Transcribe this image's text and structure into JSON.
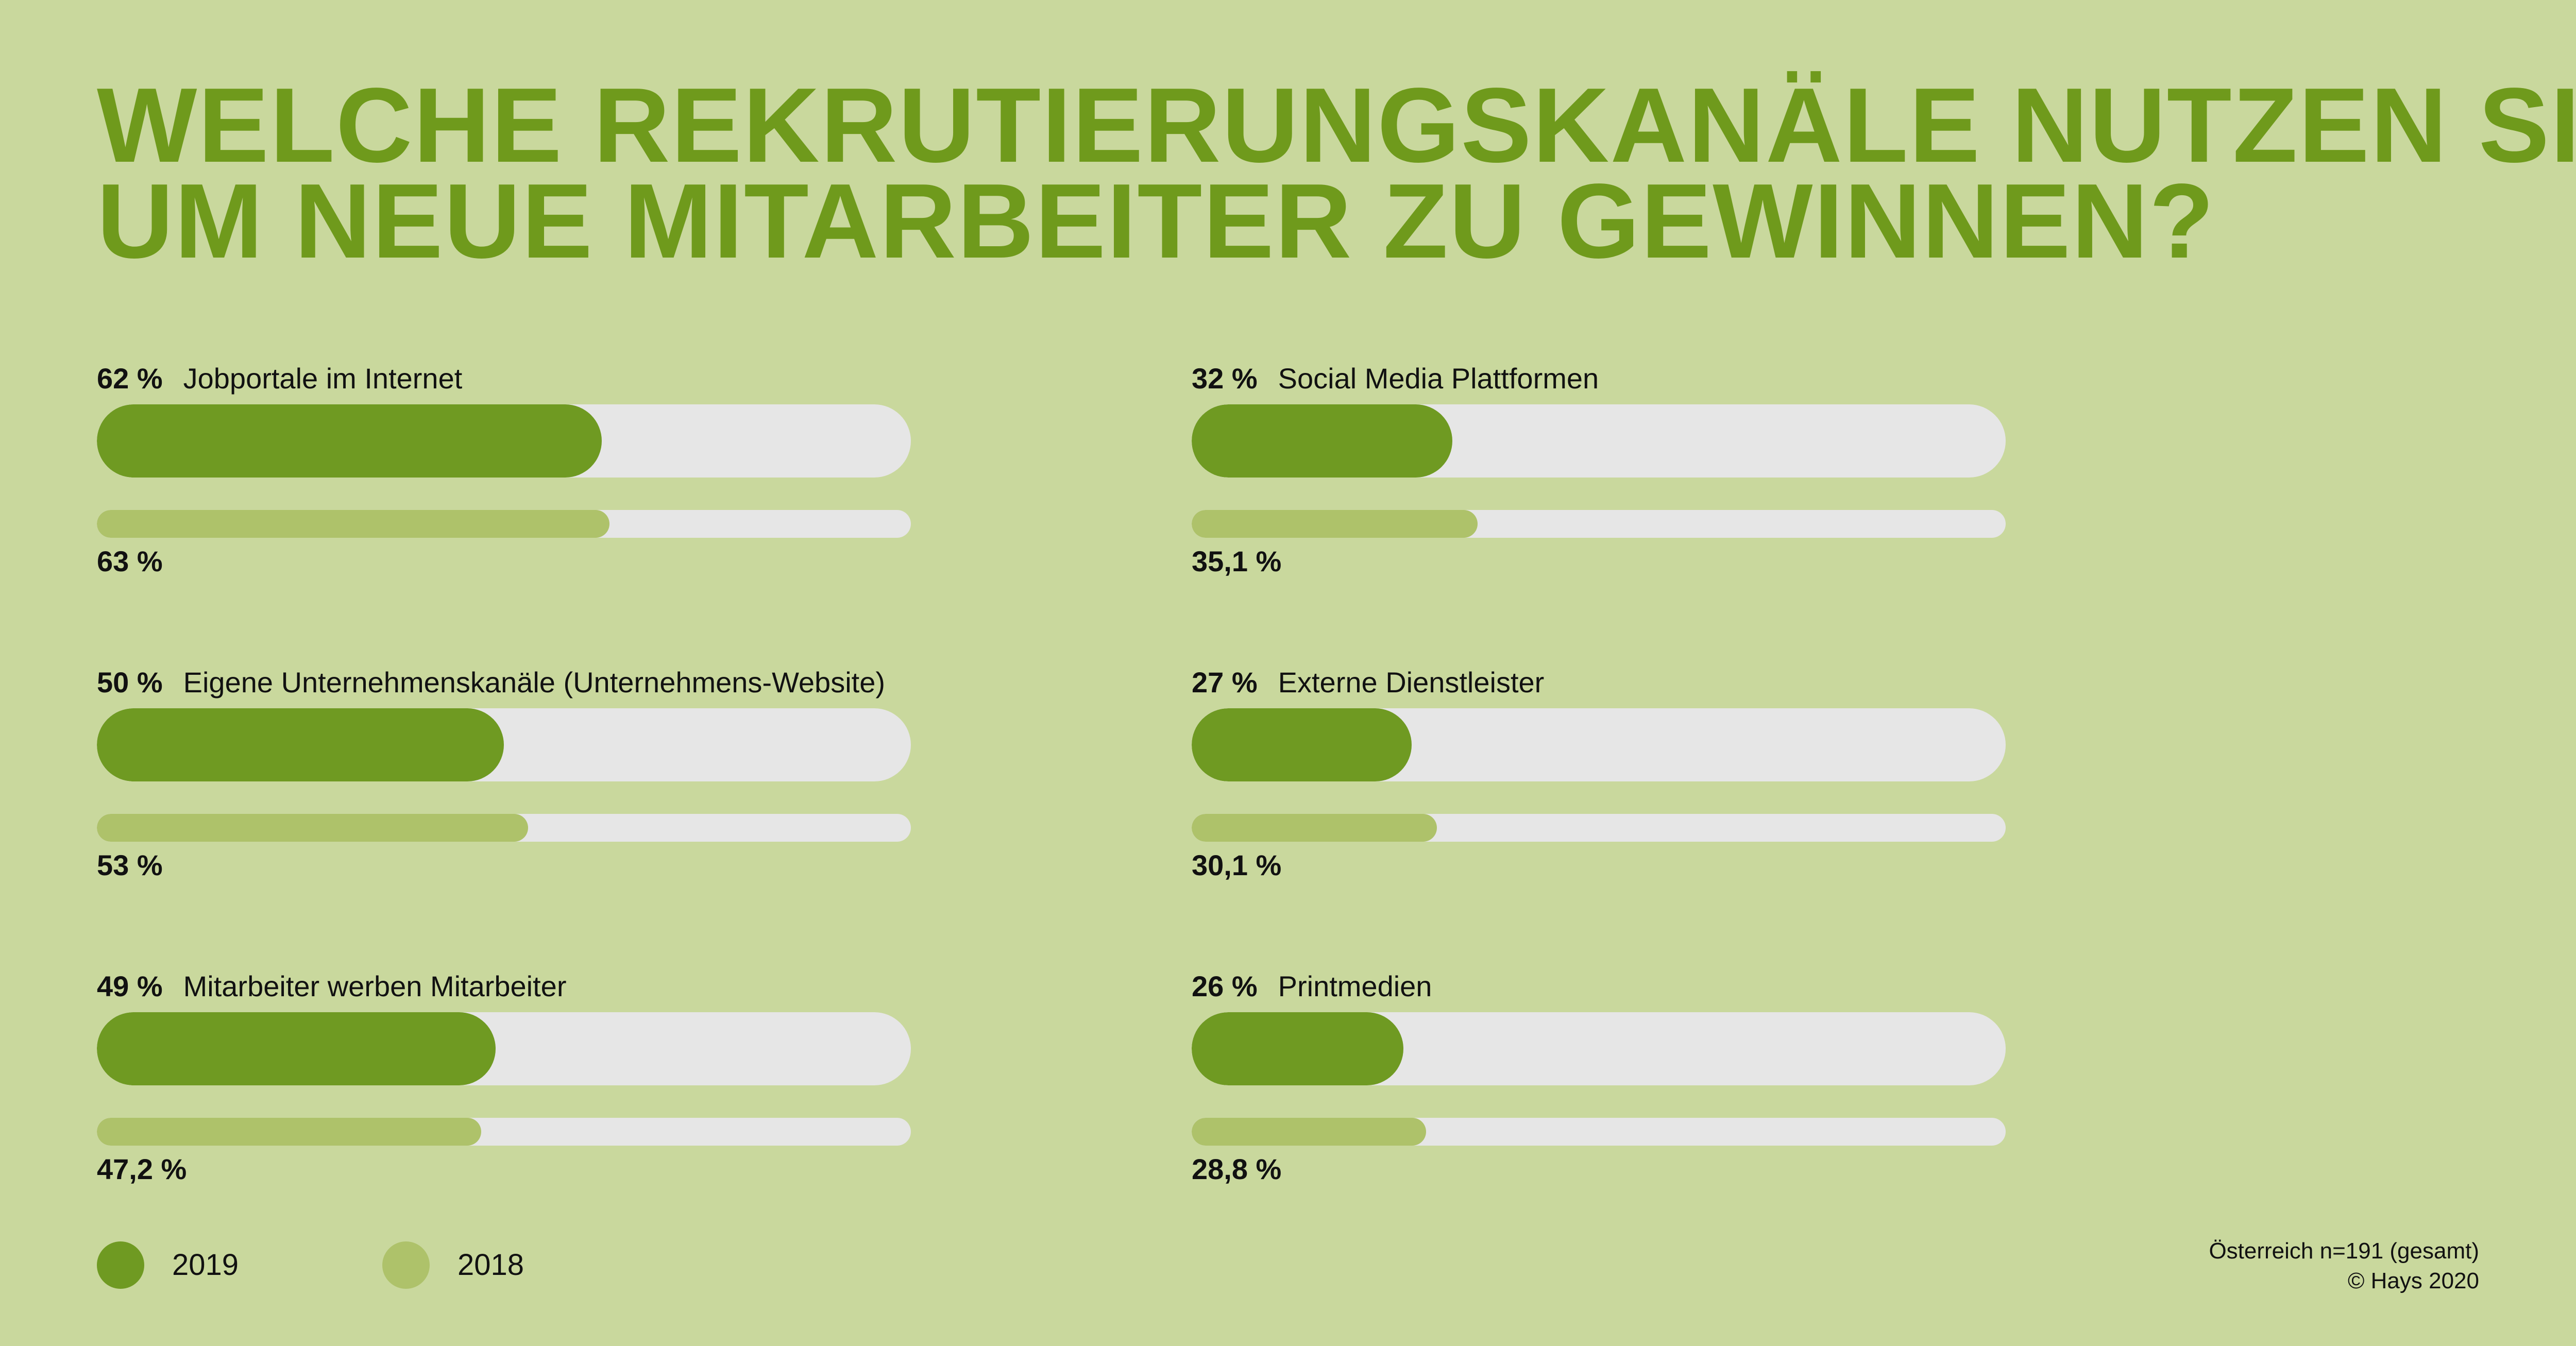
{
  "title": {
    "line1": "WELCHE REKRUTIERUNGSKANÄLE NUTZEN SIE,",
    "line2": "UM NEUE MITARBEITER ZU GEWINNEN?"
  },
  "colors": {
    "background": "#c9d89d",
    "title": "#6f9a1c",
    "bar_2019": "#6f9a22",
    "bar_2018": "#aec26a",
    "track": "#e6e6e6"
  },
  "chart_data": {
    "type": "bar",
    "orientation": "horizontal",
    "xlim": [
      0,
      100
    ],
    "unit": "%",
    "series": [
      {
        "name": "2019"
      },
      {
        "name": "2018"
      }
    ],
    "categories": [
      "Jobportale im Internet",
      "Eigene Unternehmenskanäle (Unternehmens-Website)",
      "Mitarbeiter werben Mitarbeiter",
      "Social Media Plattformen",
      "Externe Dienstleister",
      "Printmedien"
    ],
    "items": [
      {
        "label": "Jobportale im Internet",
        "value_2019": 62,
        "label_2019": "62 %",
        "value_2018": 63,
        "label_2018": "63 %"
      },
      {
        "label": "Eigene Unternehmenskanäle (Unternehmens-Website)",
        "value_2019": 50,
        "label_2019": "50 %",
        "value_2018": 53,
        "label_2018": "53 %"
      },
      {
        "label": "Mitarbeiter werben Mitarbeiter",
        "value_2019": 49,
        "label_2019": "49 %",
        "value_2018": 47.2,
        "label_2018": "47,2 %"
      },
      {
        "label": "Social Media Plattformen",
        "value_2019": 32,
        "label_2019": "32 %",
        "value_2018": 35.1,
        "label_2018": "35,1 %"
      },
      {
        "label": "Externe Dienstleister",
        "value_2019": 27,
        "label_2019": "27 %",
        "value_2018": 30.1,
        "label_2018": "30,1 %"
      },
      {
        "label": "Printmedien",
        "value_2019": 26,
        "label_2019": "26 %",
        "value_2018": 28.8,
        "label_2018": "28,8 %"
      }
    ],
    "legend": [
      {
        "label": "2019",
        "color": "#6f9a22"
      },
      {
        "label": "2018",
        "color": "#aec26a"
      }
    ],
    "legend_placement": "bottom-left"
  },
  "footnote": {
    "line1": "Österreich n=191 (gesamt)",
    "line2": "© Hays 2020"
  }
}
